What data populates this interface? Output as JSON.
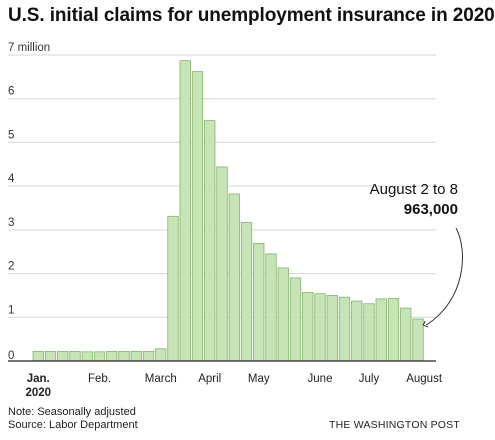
{
  "title": "U.S. initial claims for unemployment insurance in 2020",
  "annotation": {
    "label": "August 2 to 8",
    "value": "963,000"
  },
  "notes": {
    "line1": "Note: Seasonally adjusted",
    "line2": "Source: Labor Department"
  },
  "brand": "THE WASHINGTON POST",
  "colors": {
    "bar_fill": "#c6e4b5",
    "bar_stroke": "#86b36f",
    "grid": "#d6d6d6",
    "axis": "#222222",
    "text": "#111111"
  },
  "chart_data": {
    "type": "bar",
    "title": "U.S. initial claims for unemployment insurance in 2020",
    "ylabel": "",
    "xlabel": "",
    "ylim": [
      0,
      7
    ],
    "y_ticks": [
      {
        "value": 0,
        "label": "0"
      },
      {
        "value": 1,
        "label": "1"
      },
      {
        "value": 2,
        "label": "2"
      },
      {
        "value": 3,
        "label": "3"
      },
      {
        "value": 4,
        "label": "4"
      },
      {
        "value": 5,
        "label": "5"
      },
      {
        "value": 6,
        "label": "6"
      },
      {
        "value": 7,
        "label": "7 million"
      }
    ],
    "x_labels": [
      {
        "bar": 0,
        "label": "Jan.",
        "bold": true,
        "sub": "2020"
      },
      {
        "bar": 5,
        "label": "Feb.",
        "bold": false,
        "sub": ""
      },
      {
        "bar": 10,
        "label": "March",
        "bold": false,
        "sub": ""
      },
      {
        "bar": 14,
        "label": "April",
        "bold": false,
        "sub": ""
      },
      {
        "bar": 18,
        "label": "May",
        "bold": false,
        "sub": ""
      },
      {
        "bar": 23,
        "label": "June",
        "bold": false,
        "sub": ""
      },
      {
        "bar": 27,
        "label": "July",
        "bold": false,
        "sub": ""
      },
      {
        "bar": 31.5,
        "label": "August",
        "bold": false,
        "sub": ""
      }
    ],
    "values": [
      0.22,
      0.22,
      0.22,
      0.22,
      0.21,
      0.21,
      0.22,
      0.22,
      0.22,
      0.22,
      0.28,
      3.31,
      6.87,
      6.62,
      5.5,
      4.44,
      3.82,
      3.17,
      2.69,
      2.45,
      2.13,
      1.9,
      1.57,
      1.54,
      1.5,
      1.46,
      1.37,
      1.31,
      1.42,
      1.43,
      1.21,
      0.96
    ],
    "grid": true
  }
}
